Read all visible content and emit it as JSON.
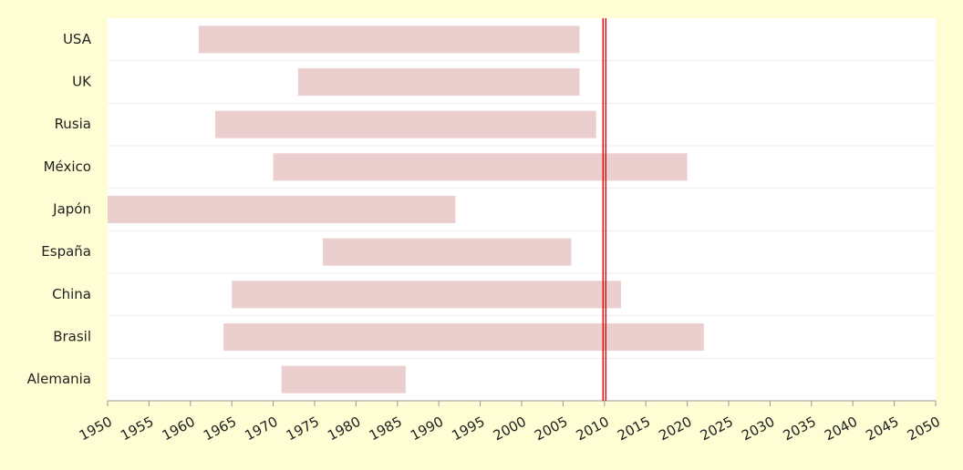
{
  "chart_data": {
    "type": "floating_bar",
    "orientation": "horizontal",
    "categories": [
      "USA",
      "UK",
      "Rusia",
      "México",
      "Japón",
      "España",
      "China",
      "Brasil",
      "Alemania"
    ],
    "start": [
      1961,
      1973,
      1963,
      1970,
      1950,
      1976,
      1965,
      1964,
      1971
    ],
    "end": [
      2007,
      2007,
      2009,
      2020,
      1992,
      2006,
      2012,
      2022,
      1986
    ],
    "color": "#ebcfcf",
    "xlim": [
      1950,
      2050
    ],
    "xticks": [
      1950,
      1955,
      1960,
      1965,
      1970,
      1975,
      1980,
      1985,
      1990,
      1995,
      2000,
      2005,
      2010,
      2015,
      2020,
      2025,
      2030,
      2035,
      2040,
      2045,
      2050
    ],
    "reference_line": {
      "value": 2010,
      "color": "#e01010"
    },
    "grid": true
  }
}
